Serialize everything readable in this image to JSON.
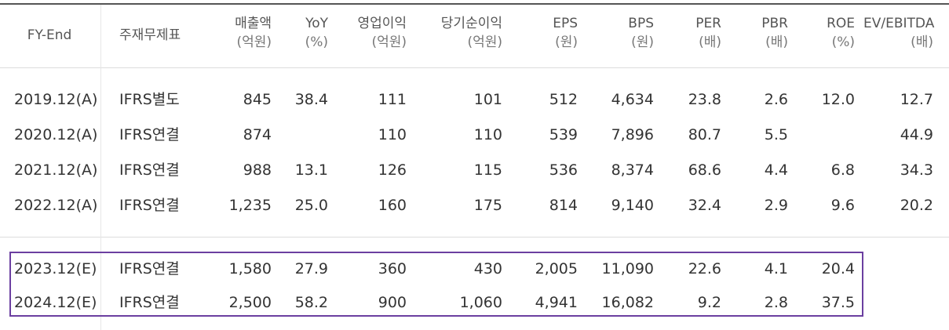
{
  "table": {
    "headers": [
      {
        "label": "FY-End",
        "unit": ""
      },
      {
        "label": "주재무제표",
        "unit": ""
      },
      {
        "label": "매출액",
        "unit": "(억원)"
      },
      {
        "label": "YoY",
        "unit": "(%)"
      },
      {
        "label": "영업이익",
        "unit": "(억원)"
      },
      {
        "label": "당기순이익",
        "unit": "(억원)"
      },
      {
        "label": "EPS",
        "unit": "(원)"
      },
      {
        "label": "BPS",
        "unit": "(원)"
      },
      {
        "label": "PER",
        "unit": "(배)"
      },
      {
        "label": "PBR",
        "unit": "(배)"
      },
      {
        "label": "ROE",
        "unit": "(%)"
      },
      {
        "label": "EV/EBITDA",
        "unit": "(배)"
      }
    ],
    "actual_rows": [
      [
        "2019.12(A)",
        "IFRS별도",
        "845",
        "38.4",
        "111",
        "101",
        "512",
        "4,634",
        "23.8",
        "2.6",
        "12.0",
        "12.7"
      ],
      [
        "2020.12(A)",
        "IFRS연결",
        "874",
        "",
        "110",
        "110",
        "539",
        "7,896",
        "80.7",
        "5.5",
        "",
        "44.9"
      ],
      [
        "2021.12(A)",
        "IFRS연결",
        "988",
        "13.1",
        "126",
        "115",
        "536",
        "8,374",
        "68.6",
        "4.4",
        "6.8",
        "34.3"
      ],
      [
        "2022.12(A)",
        "IFRS연결",
        "1,235",
        "25.0",
        "160",
        "175",
        "814",
        "9,140",
        "32.4",
        "2.9",
        "9.6",
        "20.2"
      ]
    ],
    "estimate_rows": [
      [
        "2023.12(E)",
        "IFRS연결",
        "1,580",
        "27.9",
        "360",
        "430",
        "2,005",
        "11,090",
        "22.6",
        "4.1",
        "20.4",
        ""
      ],
      [
        "2024.12(E)",
        "IFRS연결",
        "2,500",
        "58.2",
        "900",
        "1,060",
        "4,941",
        "16,082",
        "9.2",
        "2.8",
        "37.5",
        ""
      ]
    ]
  },
  "colors": {
    "highlight_border": "#6b3fa0",
    "text": "#333333",
    "header_text": "#555555",
    "rule": "#dcdcdc"
  }
}
